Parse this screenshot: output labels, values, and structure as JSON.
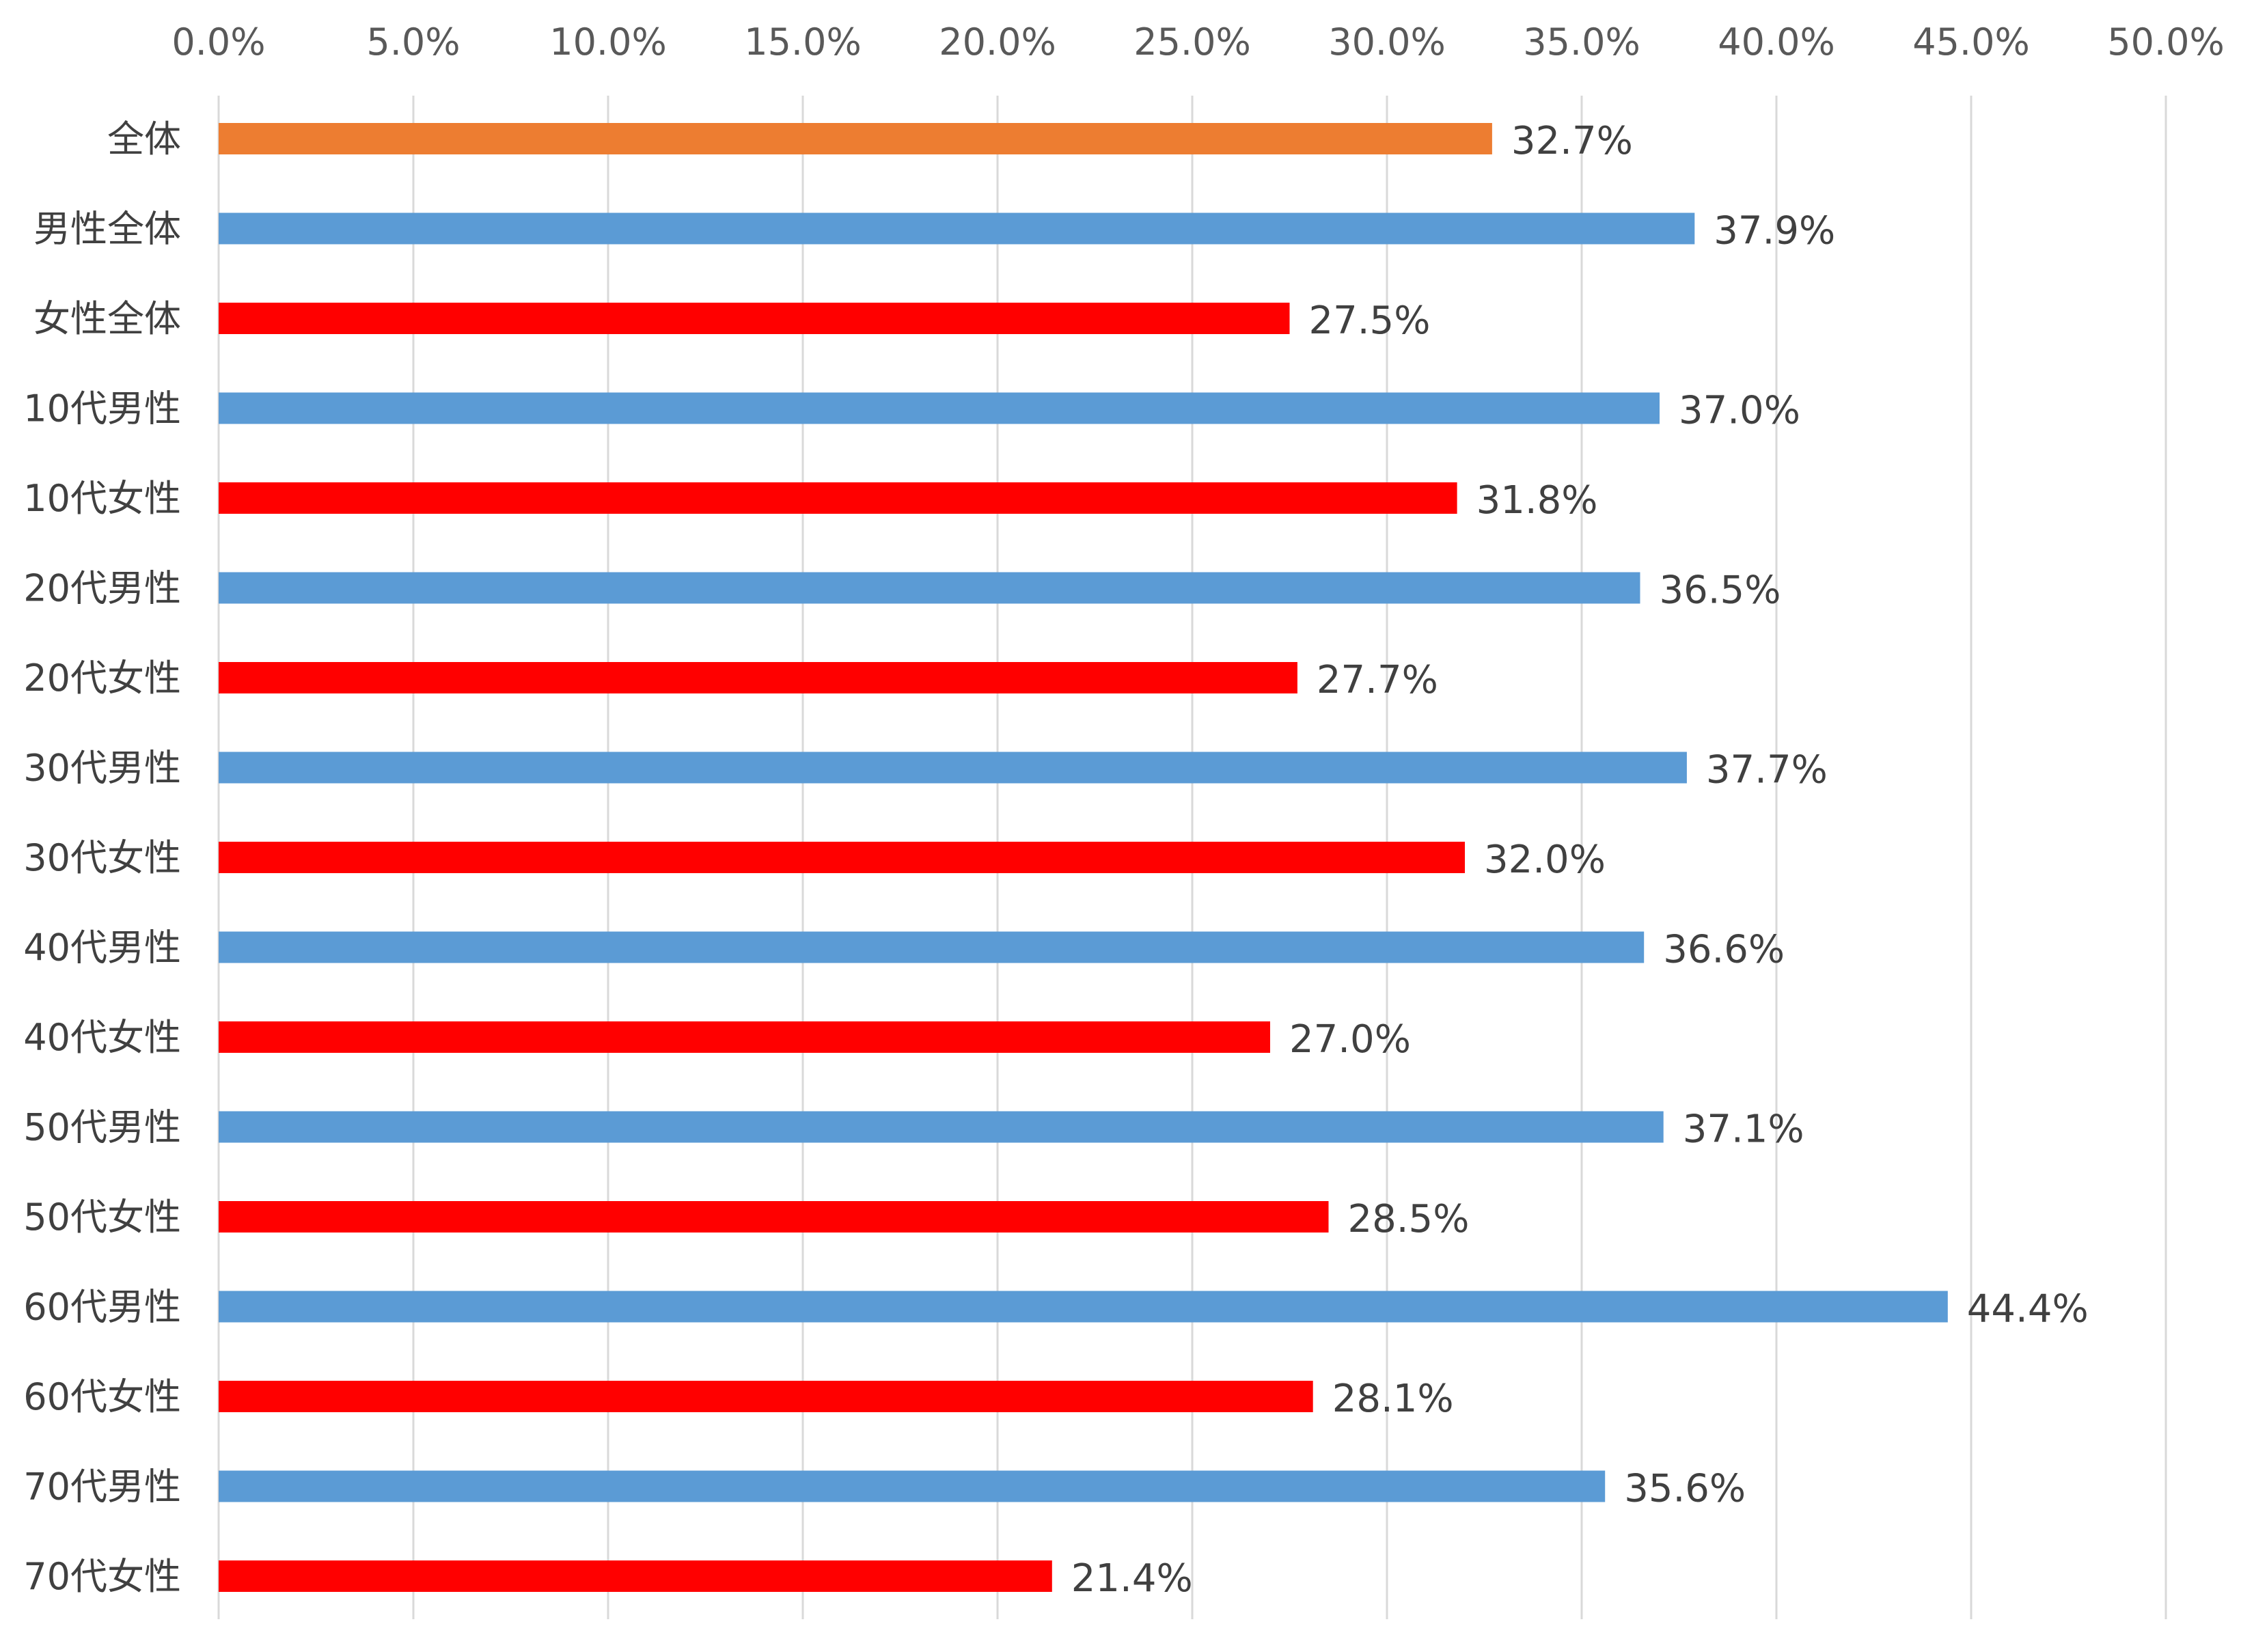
{
  "chart_data": {
    "type": "bar",
    "orientation": "horizontal",
    "x_axis_position": "top",
    "grid": true,
    "xlim": [
      0,
      50
    ],
    "x_ticks": [
      "0.0%",
      "5.0%",
      "10.0%",
      "15.0%",
      "20.0%",
      "25.0%",
      "30.0%",
      "35.0%",
      "40.0%",
      "45.0%",
      "50.0%"
    ],
    "categories": [
      "全体",
      "男性全体",
      "女性全体",
      "10代男性",
      "10代女性",
      "20代男性",
      "20代女性",
      "30代男性",
      "30代女性",
      "40代男性",
      "40代女性",
      "50代男性",
      "50代女性",
      "60代男性",
      "60代女性",
      "70代男性",
      "70代女性"
    ],
    "values": [
      32.7,
      37.9,
      27.5,
      37.0,
      31.8,
      36.5,
      27.7,
      37.7,
      32.0,
      36.6,
      27.0,
      37.1,
      28.5,
      44.4,
      28.1,
      35.6,
      21.4
    ],
    "data_labels": [
      "32.7%",
      "37.9%",
      "27.5%",
      "37.0%",
      "31.8%",
      "36.5%",
      "27.7%",
      "37.7%",
      "32.0%",
      "36.6%",
      "27.0%",
      "37.1%",
      "28.5%",
      "44.4%",
      "28.1%",
      "35.6%",
      "21.4%"
    ],
    "bar_colors": [
      "#ed7d31",
      "#5b9bd5",
      "#ff0000",
      "#5b9bd5",
      "#ff0000",
      "#5b9bd5",
      "#ff0000",
      "#5b9bd5",
      "#ff0000",
      "#5b9bd5",
      "#ff0000",
      "#5b9bd5",
      "#ff0000",
      "#5b9bd5",
      "#ff0000",
      "#5b9bd5",
      "#ff0000"
    ],
    "title": "",
    "xlabel": "",
    "ylabel": ""
  }
}
